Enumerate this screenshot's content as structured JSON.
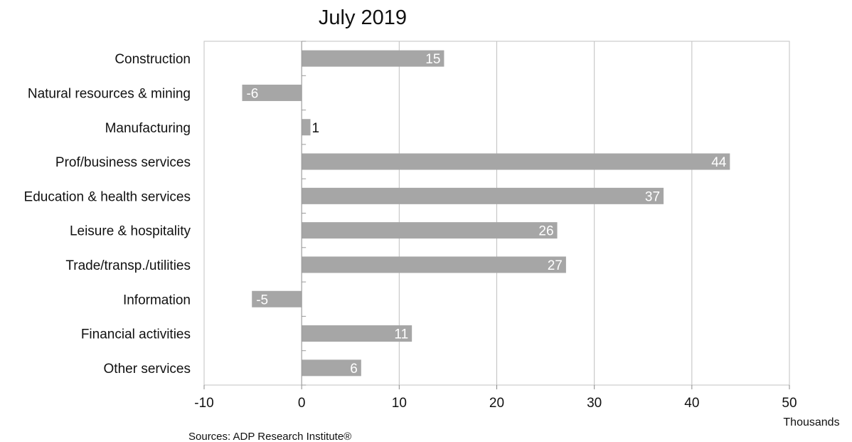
{
  "chart_data": {
    "type": "bar",
    "orientation": "horizontal",
    "title": "July 2019",
    "categories": [
      "Construction",
      "Natural resources & mining",
      "Manufacturing",
      "Prof/business services",
      "Education & health services",
      "Leisure & hospitality",
      "Trade/transp./utilities",
      "Information",
      "Financial activities",
      "Other services"
    ],
    "values": [
      14.6,
      -6.1,
      0.9,
      43.9,
      37.1,
      26.2,
      27.1,
      -5.1,
      11.3,
      6.1
    ],
    "data_labels": [
      "15",
      "-6",
      "1",
      "44",
      "37",
      "26",
      "27",
      "-5",
      "11",
      "6"
    ],
    "xlim": [
      -10,
      50
    ],
    "xticks": [
      "-10",
      "0",
      "10",
      "20",
      "30",
      "40",
      "50"
    ],
    "x_units": "Thousands",
    "grid": "vertical",
    "legend": "none",
    "bar_color": "#a6a6a6",
    "grid_color": "#c0c0c0",
    "source": "Sources: ADP Research Institute®"
  }
}
